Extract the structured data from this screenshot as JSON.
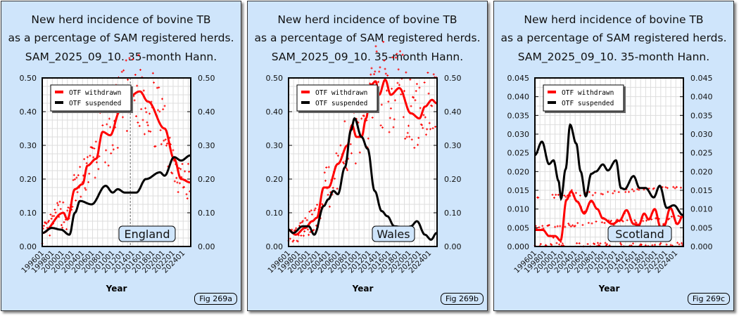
{
  "title_lines": [
    "New herd incidence of bovine TB",
    "as a percentage of SAM registered herds.",
    "SAM_2025_09_10. 35-month Hann."
  ],
  "colors": {
    "withdrawn": "#ff0000",
    "suspended": "#000000",
    "panel_bg": "#cfe5fb"
  },
  "chart_data": [
    {
      "type": "line",
      "region": "England",
      "figure": "Fig 269a",
      "xlabel": "Year",
      "ylim": [
        0,
        0.5
      ],
      "yticks": [
        "0.00",
        "0.10",
        "0.20",
        "0.30",
        "0.40",
        "0.50"
      ],
      "ytick_values": [
        0,
        0.1,
        0.2,
        0.3,
        0.4,
        0.5
      ],
      "xlim": [
        1996,
        2025.5
      ],
      "xticks": [
        "199601",
        "199801",
        "200001",
        "200201",
        "200401",
        "200601",
        "200801",
        "201001",
        "201201",
        "201401",
        "201601",
        "201801",
        "202001",
        "202201",
        "202401"
      ],
      "legend": [
        "OTF withdrawn",
        "OTF suspended"
      ],
      "legend_position": "top-left",
      "marker_year": 2013.5,
      "series": [
        {
          "name": "OTF withdrawn",
          "x": [
            1996,
            2000.2,
            2001,
            2002.5,
            2004,
            2005,
            2006.7,
            2008,
            2009.5,
            2011.4,
            2012.8,
            2015.4,
            2017,
            2020.3,
            2022.2,
            2023.6,
            2025.4
          ],
          "y": [
            0.04,
            0.1,
            0.08,
            0.17,
            0.185,
            0.24,
            0.26,
            0.34,
            0.33,
            0.4,
            0.44,
            0.46,
            0.43,
            0.35,
            0.26,
            0.2,
            0.19
          ]
        },
        {
          "name": "OTF suspended",
          "x": [
            1996,
            1997.9,
            1999.7,
            2001.4,
            2002.5,
            2003.5,
            2005.8,
            2008.6,
            2010,
            2011,
            2012.4,
            2014.7,
            2016.6,
            2019.4,
            2020.3,
            2022.2,
            2023.6,
            2025.4
          ],
          "y": [
            0.04,
            0.055,
            0.05,
            0.035,
            0.1,
            0.135,
            0.125,
            0.18,
            0.16,
            0.17,
            0.16,
            0.16,
            0.2,
            0.22,
            0.21,
            0.265,
            0.255,
            0.27
          ]
        }
      ]
    },
    {
      "type": "line",
      "region": "Wales",
      "figure": "Fig 269b",
      "xlabel": "Year",
      "ylim": [
        0,
        0.5
      ],
      "yticks": [
        "0.00",
        "0.10",
        "0.20",
        "0.30",
        "0.40",
        "0.50"
      ],
      "ytick_values": [
        0,
        0.1,
        0.2,
        0.3,
        0.4,
        0.5
      ],
      "xlim": [
        1996,
        2025.5
      ],
      "xticks": [
        "199601",
        "199801",
        "200001",
        "200201",
        "200401",
        "200601",
        "200801",
        "201001",
        "201201",
        "201401",
        "201601",
        "201801",
        "202001",
        "202201",
        "202401"
      ],
      "legend": [
        "OTF withdrawn",
        "OTF suspended"
      ],
      "legend_position": "top-left",
      "series": [
        {
          "name": "OTF withdrawn",
          "x": [
            1996,
            1997.4,
            1999.3,
            2000.7,
            2001.6,
            2003,
            2003.9,
            2005.8,
            2007.7,
            2008.6,
            2009.5,
            2010.5,
            2011.4,
            2012.4,
            2013.3,
            2014,
            2015.2,
            2016.3,
            2018,
            2020.3,
            2022,
            2023.1,
            2024.5,
            2025.4
          ],
          "y": [
            0.05,
            0.035,
            0.055,
            0.075,
            0.085,
            0.175,
            0.175,
            0.245,
            0.3,
            0.36,
            0.325,
            0.325,
            0.38,
            0.48,
            0.49,
            0.45,
            0.495,
            0.45,
            0.47,
            0.395,
            0.38,
            0.415,
            0.435,
            0.425
          ]
        },
        {
          "name": "OTF suspended",
          "x": [
            1996,
            1996.9,
            1998.8,
            2000,
            2001.1,
            2003,
            2003.9,
            2004.9,
            2005.8,
            2007.2,
            2008.4,
            2009.1,
            2010.5,
            2011.7,
            2013.1,
            2014.5,
            2015.6,
            2017,
            2019.4,
            2020.3,
            2021.5,
            2023.1,
            2024.3,
            2025.4
          ],
          "y": [
            0.05,
            0.04,
            0.06,
            0.06,
            0.035,
            0.12,
            0.14,
            0.165,
            0.155,
            0.235,
            0.345,
            0.38,
            0.325,
            0.29,
            0.165,
            0.105,
            0.09,
            0.06,
            0.055,
            0.06,
            0.075,
            0.035,
            0.02,
            0.04
          ]
        }
      ]
    },
    {
      "type": "line",
      "region": "Scotland",
      "figure": "Fig 269c",
      "xlabel": "Year",
      "ylim": [
        0,
        0.045
      ],
      "yticks": [
        "0.000",
        "0.005",
        "0.010",
        "0.015",
        "0.020",
        "0.025",
        "0.030",
        "0.035",
        "0.040",
        "0.045"
      ],
      "ytick_values": [
        0,
        0.005,
        0.01,
        0.015,
        0.02,
        0.025,
        0.03,
        0.035,
        0.04,
        0.045
      ],
      "xlim": [
        1996,
        2025.5
      ],
      "xticks": [
        "199601",
        "199801",
        "200001",
        "200201",
        "200401",
        "200601",
        "200801",
        "201001",
        "201201",
        "201401",
        "201601",
        "201801",
        "202001",
        "202201",
        "202401"
      ],
      "legend": [
        "OTF withdrawn",
        "OTF suspended"
      ],
      "legend_position": "top-left",
      "series": [
        {
          "name": "OTF withdrawn",
          "x": [
            1996,
            1997.6,
            1998.8,
            2000,
            2001.1,
            2002.3,
            2003.2,
            2004.4,
            2005.8,
            2007.2,
            2008.4,
            2009.5,
            2011.4,
            2012.8,
            2014.2,
            2015.6,
            2016.6,
            2017.7,
            2018.6,
            2019.8,
            2021,
            2021.7,
            2022.9,
            2024.3,
            2025.4
          ],
          "y": [
            0.0044,
            0.0044,
            0.0028,
            0.0028,
            0.0016,
            0.0125,
            0.0147,
            0.012,
            0.0088,
            0.0122,
            0.01,
            0.0075,
            0.006,
            0.0069,
            0.0097,
            0.006,
            0.0056,
            0.0088,
            0.0072,
            0.01,
            0.005,
            0.0056,
            0.0103,
            0.006,
            0.0081
          ]
        },
        {
          "name": "OTF suspended",
          "x": [
            1996,
            1997.4,
            1998.8,
            1999.7,
            2000.7,
            2001.2,
            2002.1,
            2003,
            2004.2,
            2005.1,
            2006.1,
            2007.2,
            2008.1,
            2009.5,
            2010.5,
            2012.1,
            2013.1,
            2013.8,
            2015.6,
            2016.8,
            2018,
            2019.6,
            2020.8,
            2022.2,
            2023.6,
            2025.4
          ],
          "y": [
            0.0244,
            0.028,
            0.022,
            0.023,
            0.0175,
            0.0128,
            0.0206,
            0.0325,
            0.0275,
            0.02,
            0.0134,
            0.0194,
            0.02,
            0.0219,
            0.0203,
            0.023,
            0.0156,
            0.0153,
            0.0188,
            0.0156,
            0.0156,
            0.0131,
            0.0162,
            0.0103,
            0.011,
            0.0084
          ]
        }
      ]
    }
  ]
}
